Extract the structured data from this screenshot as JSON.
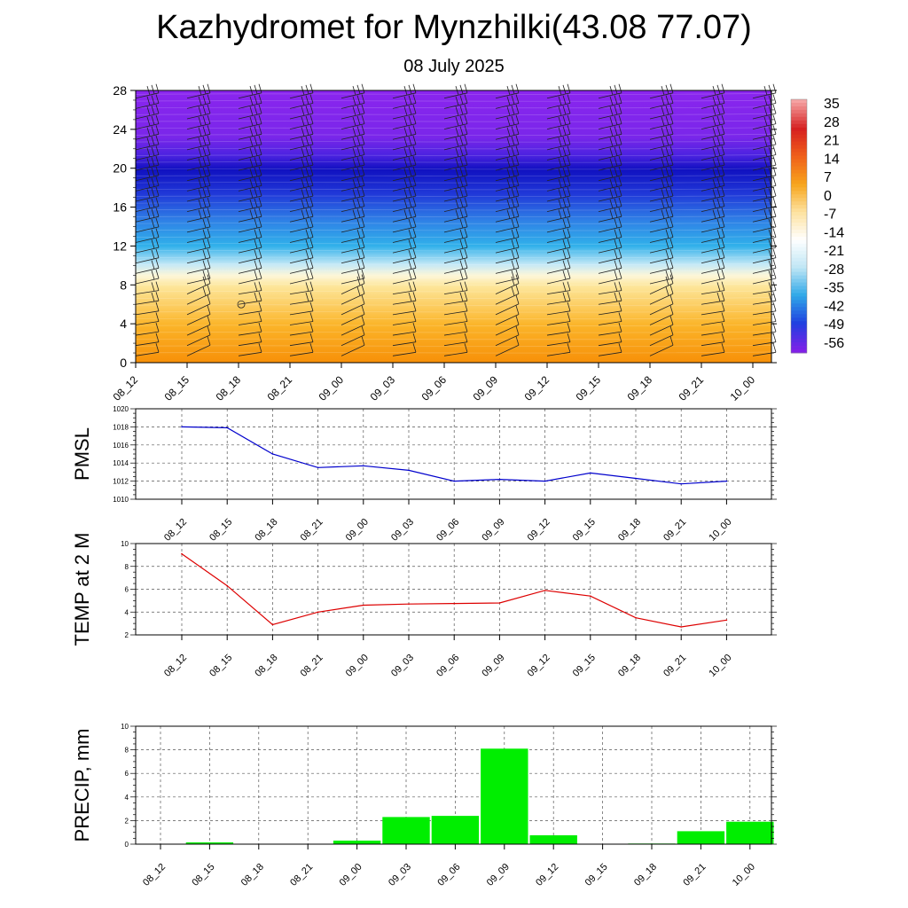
{
  "title": "Kazhydromet for Mynzhilki(43.08 77.07)",
  "subtitle": "08 July 2025",
  "time_labels": [
    "08_12",
    "08_15",
    "08_18",
    "08_21",
    "09_00",
    "09_03",
    "09_06",
    "09_09",
    "09_12",
    "09_15",
    "09_18",
    "09_21",
    "10_00"
  ],
  "colorbar": {
    "labels": [
      "35",
      "28",
      "21",
      "14",
      "7",
      "0",
      "-7",
      "-14",
      "-21",
      "-28",
      "-35",
      "-42",
      "-49",
      "-56"
    ],
    "colors": [
      "#f5a3a3",
      "#d62020",
      "#f0601a",
      "#f7a51c",
      "#fde2a0",
      "#ffffff",
      "#bfe6f5",
      "#2fa8e8",
      "#2040e0",
      "#8020e8"
    ]
  },
  "chart_data": [
    {
      "type": "heatmap",
      "title": "",
      "ylabel": "",
      "ylim": [
        0,
        28
      ],
      "yticks": [
        0,
        4,
        8,
        12,
        16,
        20,
        24,
        28
      ],
      "x": [
        "08_12",
        "08_15",
        "08_18",
        "08_21",
        "09_00",
        "09_03",
        "09_06",
        "09_09",
        "09_12",
        "09_15",
        "09_18",
        "09_21",
        "10_00"
      ],
      "temperature_profile_by_height": [
        {
          "height": 0,
          "value": 10
        },
        {
          "height": 4,
          "value": 5
        },
        {
          "height": 8,
          "value": -3
        },
        {
          "height": 10,
          "value": -12
        },
        {
          "height": 12,
          "value": -25
        },
        {
          "height": 14,
          "value": -35
        },
        {
          "height": 16,
          "value": -45
        },
        {
          "height": 18,
          "value": -55
        },
        {
          "height": 20,
          "value": -60
        },
        {
          "height": 22,
          "value": -56
        },
        {
          "height": 28,
          "value": -56
        }
      ],
      "wind_barbs": true
    },
    {
      "type": "line",
      "ylabel": "PMSL",
      "ylim": [
        1010,
        1020
      ],
      "yticks": [
        1010,
        1012,
        1014,
        1016,
        1018,
        1020
      ],
      "x": [
        "08_12",
        "08_15",
        "08_18",
        "08_21",
        "09_00",
        "09_03",
        "09_06",
        "09_09",
        "09_12",
        "09_15",
        "09_18",
        "09_21",
        "10_00"
      ],
      "values": [
        1018.0,
        1017.9,
        1015.0,
        1013.5,
        1013.7,
        1013.2,
        1012.0,
        1012.2,
        1012.0,
        1012.9,
        1012.3,
        1011.7,
        1012.0
      ],
      "color": "#0000cc",
      "grid": true
    },
    {
      "type": "line",
      "ylabel": "TEMP at 2 M",
      "ylim": [
        2,
        10
      ],
      "yticks": [
        2,
        4,
        6,
        8,
        10
      ],
      "x": [
        "08_12",
        "08_15",
        "08_18",
        "08_21",
        "09_00",
        "09_03",
        "09_06",
        "09_09",
        "09_12",
        "09_15",
        "09_18",
        "09_21",
        "10_00"
      ],
      "values": [
        9.1,
        6.3,
        2.9,
        4.0,
        4.6,
        4.7,
        4.75,
        4.8,
        5.9,
        5.4,
        3.5,
        2.7,
        3.3
      ],
      "color": "#dd0000",
      "grid": true
    },
    {
      "type": "bar",
      "ylabel": "PRECIP, mm",
      "ylim": [
        0,
        10
      ],
      "yticks": [
        0,
        2,
        4,
        6,
        8,
        10
      ],
      "x": [
        "08_12",
        "08_15",
        "08_18",
        "08_21",
        "09_00",
        "09_03",
        "09_06",
        "09_09",
        "09_12",
        "09_15",
        "09_18",
        "09_21",
        "10_00"
      ],
      "values": [
        0,
        0.15,
        0,
        0,
        0.3,
        2.3,
        2.4,
        8.1,
        0.75,
        0,
        0.05,
        1.1,
        1.9
      ],
      "color": "#00ee00",
      "grid": true
    }
  ]
}
